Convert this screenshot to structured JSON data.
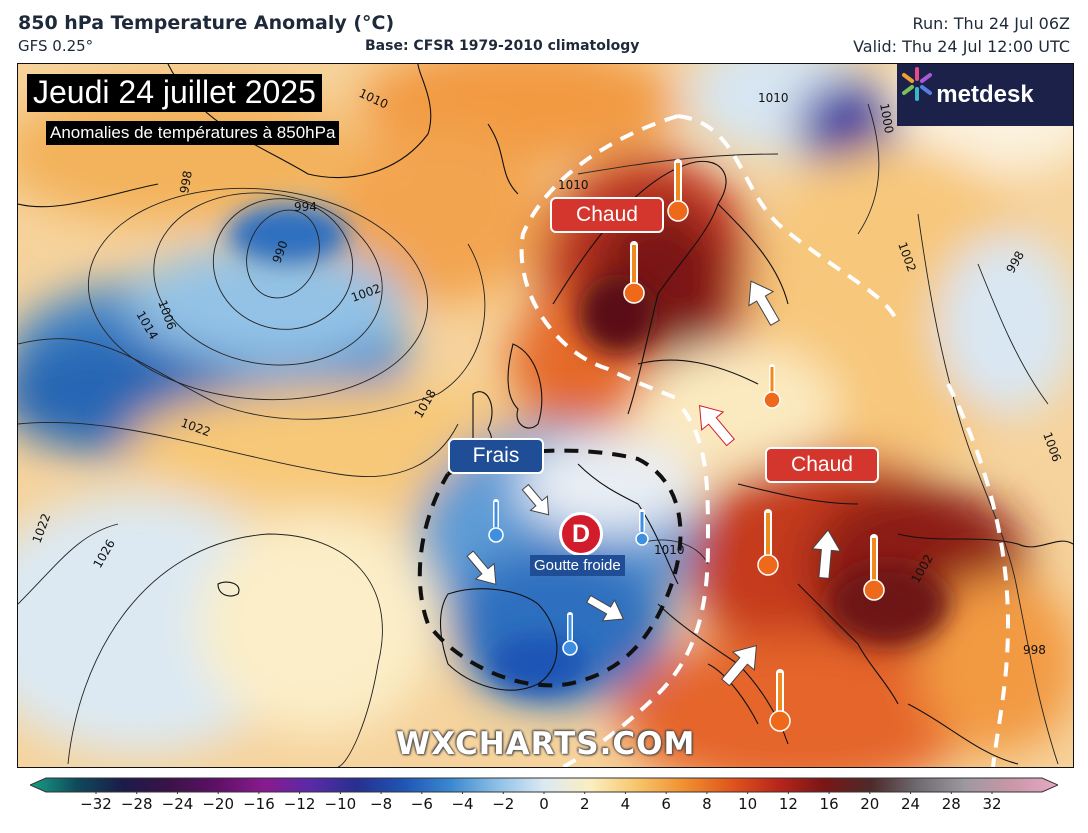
{
  "header": {
    "title": "850 hPa Temperature Anomaly (°C)",
    "model": "GFS 0.25°",
    "base": "Base: CFSR 1979-2010 climatology",
    "run": "Run: Thu 24 Jul 06Z",
    "valid": "Valid: Thu 24 Jul 12:00 UTC"
  },
  "overlay": {
    "date_title": "Jeudi 24 juillet 2025",
    "subtitle": "Anomalies de températures à 850hPa",
    "logo_text": "metdesk",
    "watermark": "WXCHARTS.COM"
  },
  "annotations": {
    "warm_north": "Chaud",
    "warm_southeast": "Chaud",
    "cool_west": "Frais",
    "low_symbol": "D",
    "low_label": "Goutte froide"
  },
  "isobars": [
    "1010",
    "1010",
    "1000",
    "998",
    "994",
    "990",
    "1006",
    "1014",
    "1002",
    "1018",
    "1022",
    "1022",
    "1026",
    "1010",
    "1002",
    "998",
    "1002",
    "998",
    "1006",
    "1010"
  ],
  "colorbar": {
    "ticks": [
      "−32",
      "−28",
      "−24",
      "−20",
      "−16",
      "−12",
      "−10",
      "−8",
      "−6",
      "−4",
      "−2",
      "0",
      "2",
      "4",
      "6",
      "8",
      "10",
      "12",
      "16",
      "20",
      "24",
      "28",
      "32"
    ],
    "colors": [
      "#16a085",
      "#0f4a5a",
      "#1b1b4a",
      "#3c1248",
      "#5e1067",
      "#8a1a8f",
      "#5a2aa8",
      "#27308f",
      "#1f55b5",
      "#3b88d0",
      "#8ec0e6",
      "#dbe9f4",
      "#fbeec0",
      "#f7c56a",
      "#f09030",
      "#e0561c",
      "#b8261b",
      "#7a1616",
      "#4d2a2a",
      "#6f6a72",
      "#9d98a0",
      "#c897a8",
      "#e9a8c4"
    ]
  },
  "colors": {
    "warm_label": "#d4352c",
    "cool_label": "#1f4e96",
    "low_marker": "#d21c2b",
    "logo_bg": "#1b2148"
  }
}
